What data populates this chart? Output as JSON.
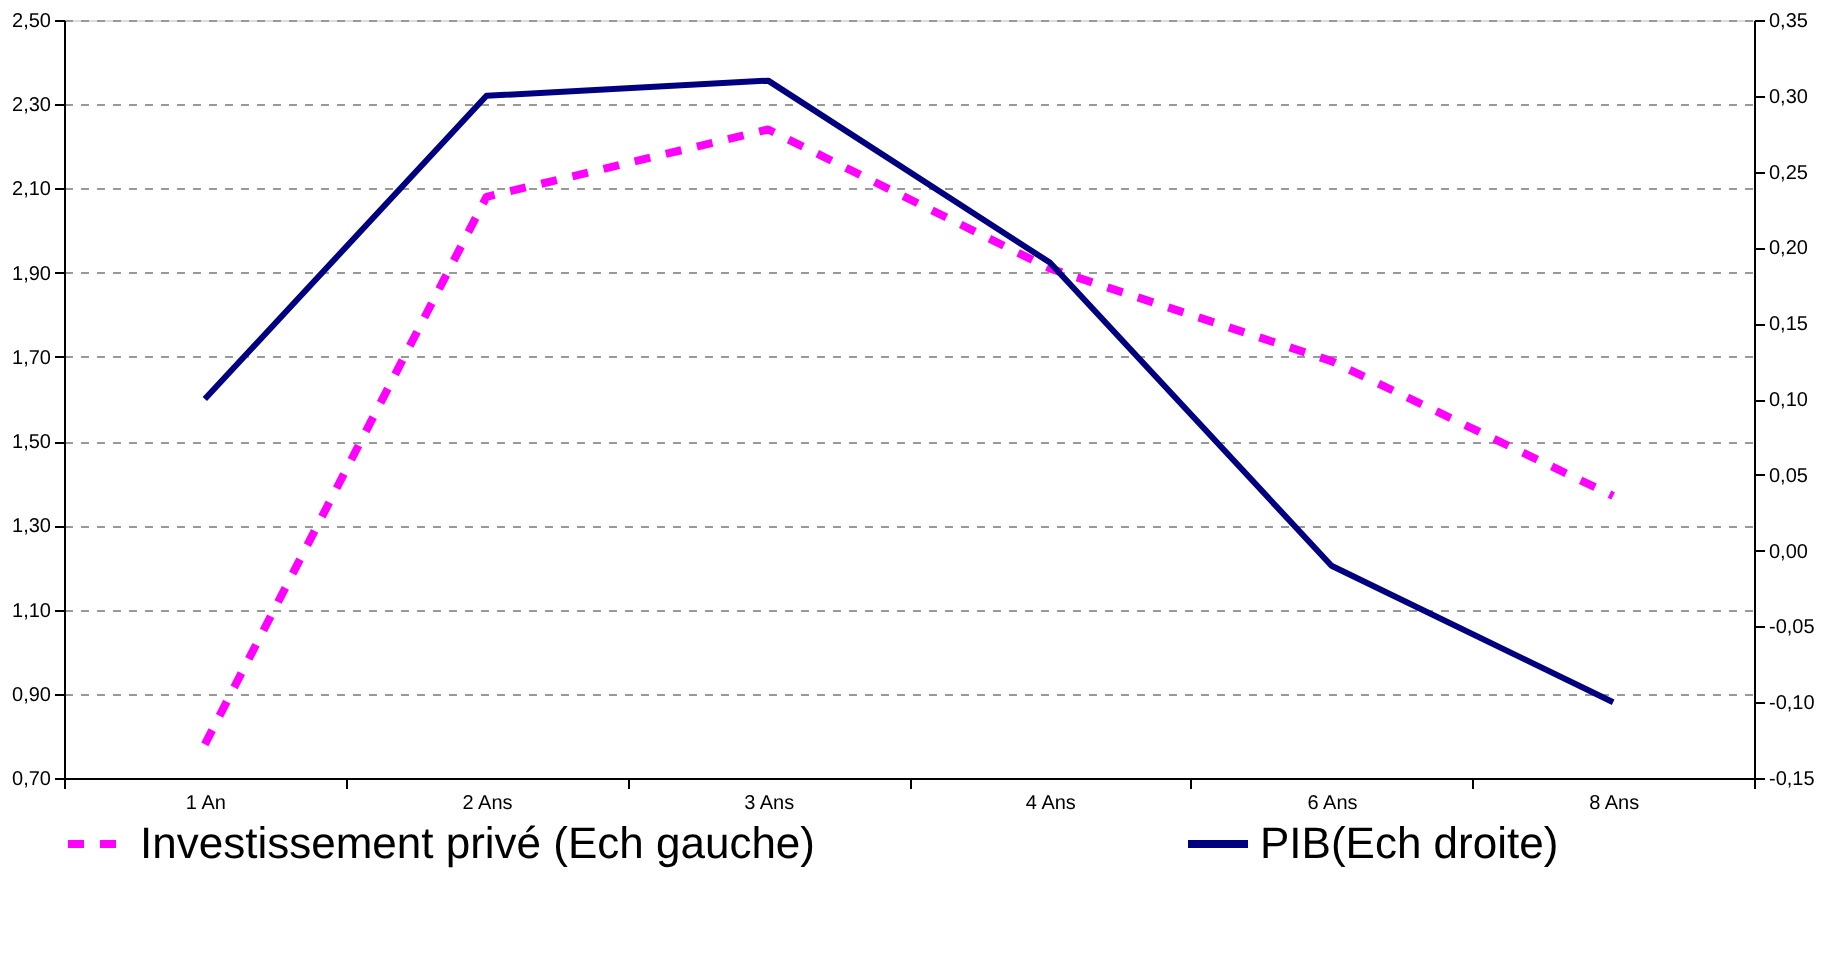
{
  "chart_data": {
    "type": "line",
    "categories": [
      "1 An",
      "2 Ans",
      "3 Ans",
      "4 Ans",
      "6 Ans",
      "8 Ans"
    ],
    "series": [
      {
        "name": "Investissement privé (Ech gauche)",
        "color": "#ff00ff",
        "line_style": "dashed",
        "values": [
          0.78,
          2.08,
          2.24,
          1.91,
          1.69,
          1.37
        ]
      },
      {
        "name": "PIB(Ech droite)",
        "color": "#000080",
        "line_style": "solid",
        "axis": "y2",
        "values": [
          0.1,
          0.3,
          0.31,
          0.19,
          -0.01,
          -0.1
        ]
      }
    ],
    "ylim": [
      0.7,
      2.5
    ],
    "yticks": [
      {
        "value": 0.7,
        "label": "0,70"
      },
      {
        "value": 0.9,
        "label": "0,90"
      },
      {
        "value": 1.1,
        "label": "1,10"
      },
      {
        "value": 1.3,
        "label": "1,30"
      },
      {
        "value": 1.5,
        "label": "1,50"
      },
      {
        "value": 1.7,
        "label": "1,70"
      },
      {
        "value": 1.9,
        "label": "1,90"
      },
      {
        "value": 2.1,
        "label": "2,10"
      },
      {
        "value": 2.3,
        "label": "2,30"
      },
      {
        "value": 2.5,
        "label": "2,50"
      }
    ],
    "y2lim": [
      -0.15,
      0.35
    ],
    "y2ticks": [
      {
        "value": -0.15,
        "label": "-0,15"
      },
      {
        "value": -0.1,
        "label": "-0,10"
      },
      {
        "value": -0.05,
        "label": "-0,05"
      },
      {
        "value": 0,
        "label": "0,00"
      },
      {
        "value": 0.05,
        "label": "0,05"
      },
      {
        "value": 0.1,
        "label": "0,10"
      },
      {
        "value": 0.15,
        "label": "0,15"
      },
      {
        "value": 0.2,
        "label": "0,20"
      },
      {
        "value": 0.25,
        "label": "0,25"
      },
      {
        "value": 0.3,
        "label": "0,30"
      },
      {
        "value": 0.35,
        "label": "0,35"
      }
    ],
    "grid": "y",
    "legend": "bottom"
  }
}
